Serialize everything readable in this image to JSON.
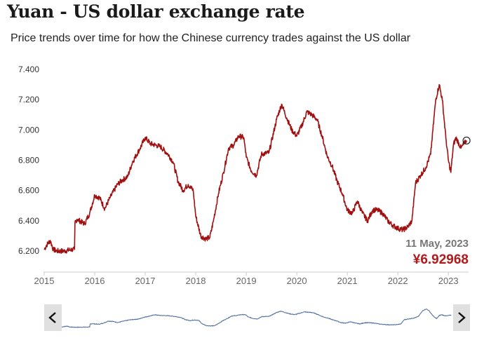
{
  "header": {
    "title": "Yuan - US dollar exchange rate",
    "subtitle": "Price trends over time for how the Chinese currency trades against the US dollar"
  },
  "colors": {
    "line": "#a01010",
    "navigator_line": "#4a6c9b",
    "value_label": "#b01a1a",
    "date_label": "#777777"
  },
  "tooltip": {
    "date": "11 May, 2023",
    "value": "¥6.92968"
  },
  "navigator": {
    "left_icon": "chevron-left-icon",
    "right_icon": "chevron-right-icon"
  },
  "chart_data": {
    "type": "line",
    "title": "Yuan - US dollar exchange rate",
    "xlabel": "",
    "ylabel": "",
    "ylim": [
      6.2,
      7.4
    ],
    "xlim": [
      2015.0,
      2023.4
    ],
    "y_ticks": [
      "6.200",
      "6.400",
      "6.600",
      "6.800",
      "7.000",
      "7.200",
      "7.400"
    ],
    "x_ticks": [
      "2015",
      "2016",
      "2017",
      "2018",
      "2019",
      "2020",
      "2021",
      "2022",
      "2023"
    ],
    "grid": false,
    "legend": "none",
    "series": [
      {
        "x": [
          2015.0,
          2015.05,
          2015.12,
          2015.18,
          2015.25,
          2015.4,
          2015.55,
          2015.6,
          2015.61,
          2015.65,
          2015.8,
          2015.9,
          2016.0,
          2016.1,
          2016.2,
          2016.3,
          2016.45,
          2016.55,
          2016.65,
          2016.75,
          2016.9,
          2017.0,
          2017.1,
          2017.2,
          2017.3,
          2017.45,
          2017.55,
          2017.65,
          2017.75,
          2017.85,
          2017.95,
          2018.0,
          2018.1,
          2018.2,
          2018.28,
          2018.35,
          2018.45,
          2018.55,
          2018.65,
          2018.75,
          2018.85,
          2018.95,
          2019.0,
          2019.1,
          2019.2,
          2019.3,
          2019.45,
          2019.6,
          2019.7,
          2019.8,
          2019.9,
          2020.0,
          2020.1,
          2020.2,
          2020.3,
          2020.4,
          2020.5,
          2020.6,
          2020.7,
          2020.8,
          2020.9,
          2021.0,
          2021.1,
          2021.2,
          2021.3,
          2021.4,
          2021.5,
          2021.6,
          2021.7,
          2021.8,
          2021.9,
          2022.0,
          2022.1,
          2022.2,
          2022.28,
          2022.35,
          2022.45,
          2022.55,
          2022.65,
          2022.75,
          2022.82,
          2022.88,
          2022.95,
          2023.0,
          2023.05,
          2023.1,
          2023.15,
          2023.25,
          2023.36
        ],
        "y": [
          6.21,
          6.24,
          6.27,
          6.21,
          6.2,
          6.2,
          6.21,
          6.21,
          6.39,
          6.41,
          6.38,
          6.45,
          6.57,
          6.55,
          6.48,
          6.55,
          6.64,
          6.67,
          6.69,
          6.79,
          6.88,
          6.95,
          6.91,
          6.9,
          6.89,
          6.84,
          6.79,
          6.66,
          6.6,
          6.64,
          6.6,
          6.43,
          6.3,
          6.28,
          6.29,
          6.4,
          6.58,
          6.72,
          6.88,
          6.9,
          6.96,
          6.95,
          6.82,
          6.73,
          6.7,
          6.84,
          6.85,
          7.07,
          7.17,
          7.08,
          7.0,
          6.96,
          7.03,
          7.12,
          7.1,
          7.07,
          6.96,
          6.83,
          6.76,
          6.66,
          6.58,
          6.47,
          6.45,
          6.53,
          6.45,
          6.4,
          6.47,
          6.47,
          6.45,
          6.4,
          6.37,
          6.35,
          6.34,
          6.36,
          6.4,
          6.65,
          6.7,
          6.75,
          6.84,
          7.2,
          7.3,
          7.2,
          6.95,
          6.8,
          6.72,
          6.9,
          6.95,
          6.88,
          6.93
        ]
      }
    ]
  }
}
